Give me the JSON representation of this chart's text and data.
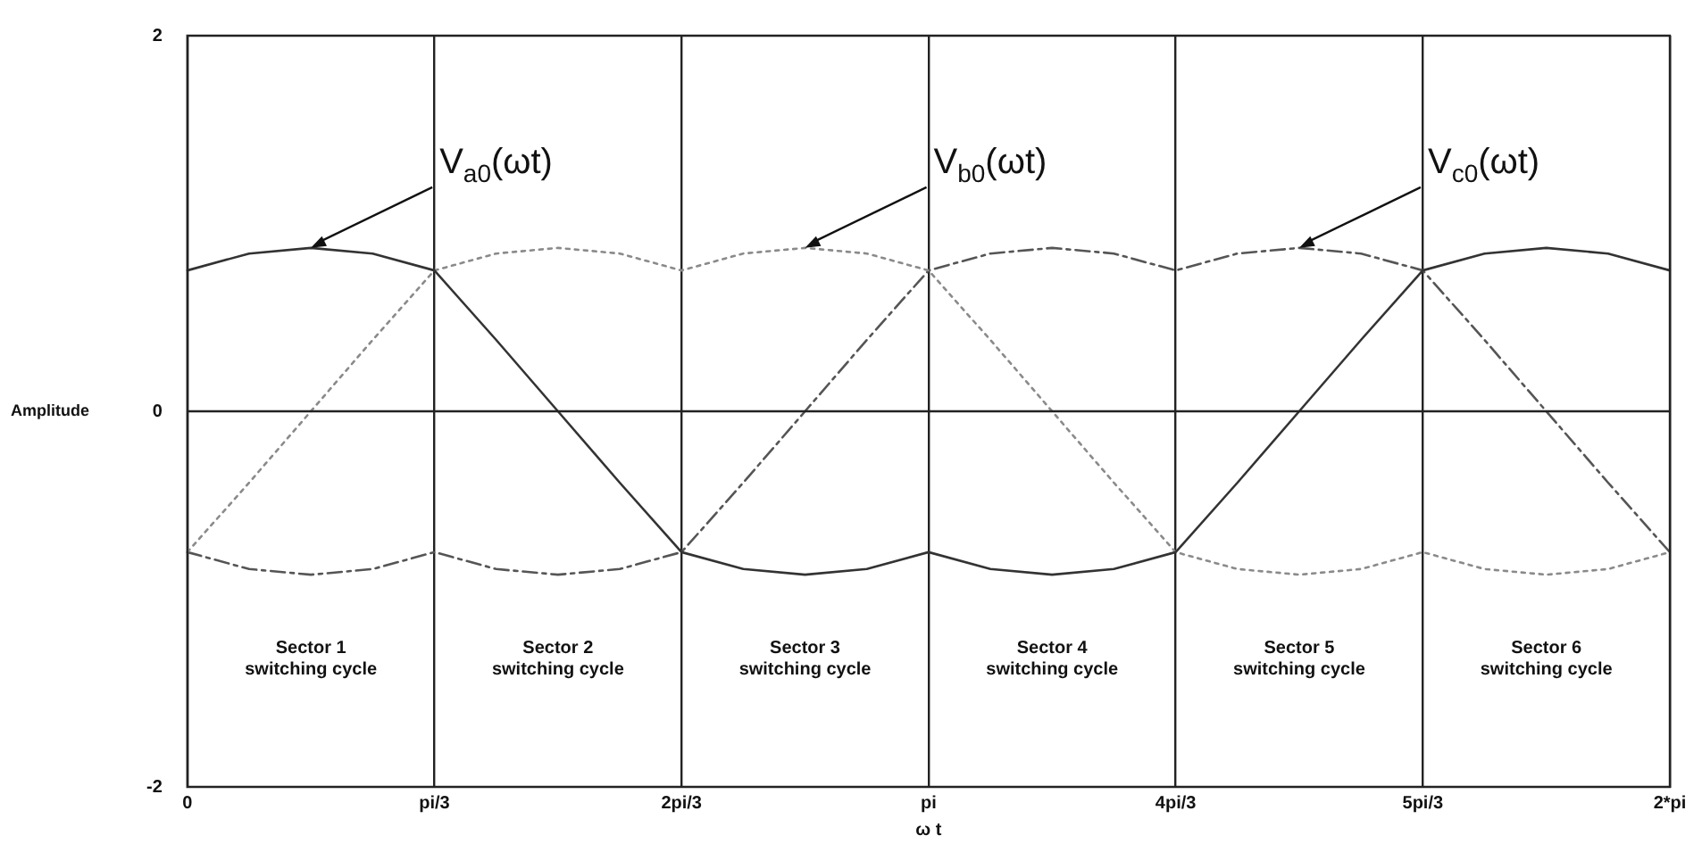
{
  "chart_data": {
    "type": "line",
    "xlabel": "ω t",
    "ylabel": "Amplitude",
    "categories": [
      "0",
      null,
      null,
      null,
      "pi/3",
      null,
      null,
      null,
      "2pi/3",
      null,
      null,
      null,
      "pi",
      null,
      null,
      null,
      "4pi/3",
      null,
      null,
      null,
      "5pi/3",
      null,
      null,
      null,
      "2*pi"
    ],
    "series": [
      {
        "name": "V$_{a0}$(ωt)",
        "color": "#333333",
        "line_style": "solid",
        "values": [
          0.75,
          0.84,
          0.87,
          0.84,
          0.75,
          0.38,
          0,
          -0.38,
          -0.75,
          -0.84,
          -0.87,
          -0.84,
          -0.75,
          -0.84,
          -0.87,
          -0.84,
          -0.75,
          -0.38,
          0,
          0.38,
          0.75,
          0.84,
          0.87,
          0.84,
          0.75
        ]
      },
      {
        "name": "V$_{b0}$(ωt)",
        "color": "#8a8a8a",
        "line_style": "dotted",
        "values": [
          -0.75,
          -0.38,
          0,
          0.38,
          0.75,
          0.84,
          0.87,
          0.84,
          0.75,
          0.84,
          0.87,
          0.84,
          0.75,
          0.38,
          0,
          -0.38,
          -0.75,
          -0.84,
          -0.87,
          -0.84,
          -0.75,
          -0.84,
          -0.87,
          -0.84,
          -0.75
        ]
      },
      {
        "name": "V$_{c0}$(ωt)",
        "color": "#555555",
        "line_style": "dashed",
        "values": [
          -0.75,
          -0.84,
          -0.87,
          -0.84,
          -0.75,
          -0.84,
          -0.87,
          -0.84,
          -0.75,
          -0.38,
          0,
          0.38,
          0.75,
          0.84,
          0.87,
          0.84,
          0.75,
          0.84,
          0.87,
          0.84,
          0.75,
          0.38,
          0,
          -0.38,
          -0.75
        ]
      }
    ],
    "ylim": [
      -2,
      2
    ],
    "yticks": [
      -2,
      0,
      2
    ],
    "grid": "x",
    "legend": false,
    "marker": "none",
    "ref_lines": [
      {
        "axis": "y",
        "value": 0
      }
    ],
    "annotations": [
      "Sector 1\nswitching cycle",
      "Sector 2\nswitching cycle",
      "Sector 3\nswitching cycle",
      "Sector 4\nswitching cycle",
      "Sector 5\nswitching cycle",
      "Sector 6\nswitching cycle"
    ]
  }
}
